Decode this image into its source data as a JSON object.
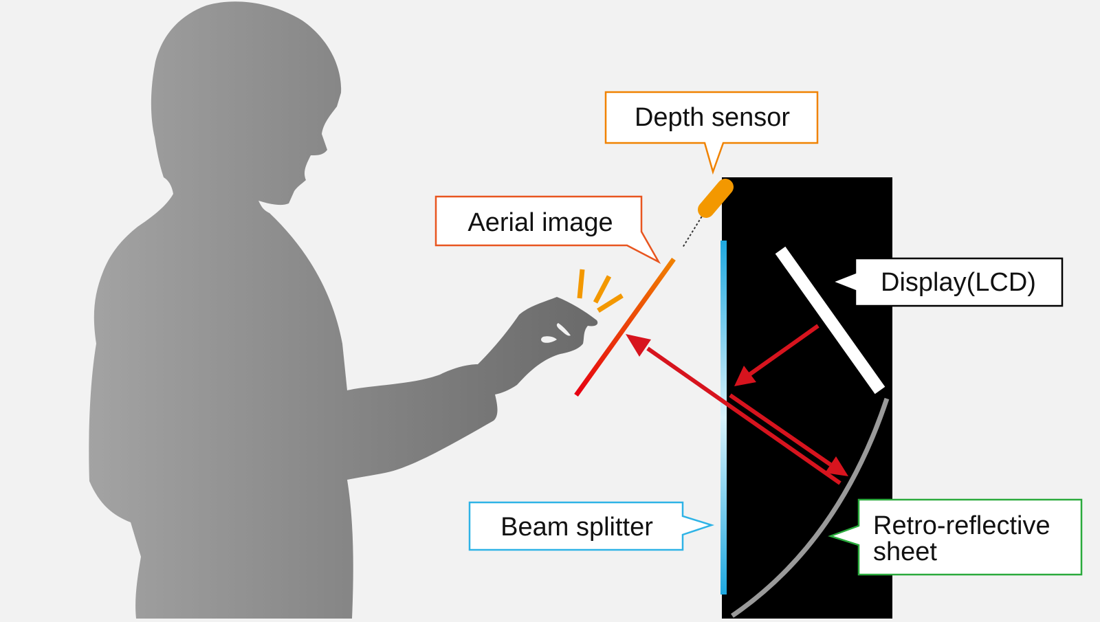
{
  "labels": {
    "depth_sensor": "Depth sensor",
    "aerial_image": "Aerial image",
    "display": "Display(LCD)",
    "beam_splitter": "Beam splitter",
    "retro_line1": "Retro-reflective",
    "retro_line2": "sheet"
  },
  "colors": {
    "background": "#f2f2f2",
    "cabinet": "#000000",
    "depth_sensor": "#f39800",
    "aerial_image_top": "#f08200",
    "aerial_image_bottom": "#e60012",
    "arrow": "#d7141e",
    "beam_splitter": "#2eb3e6",
    "retro_sheet": "#9a9a9a",
    "callout_depth": "#f08200",
    "callout_aerial": "#e8551f",
    "callout_display": "#000000",
    "callout_beam": "#2eb3e6",
    "callout_retro": "#2aaa3c",
    "person_light": "#a0a0a0",
    "person_dark": "#6e6e6e"
  }
}
